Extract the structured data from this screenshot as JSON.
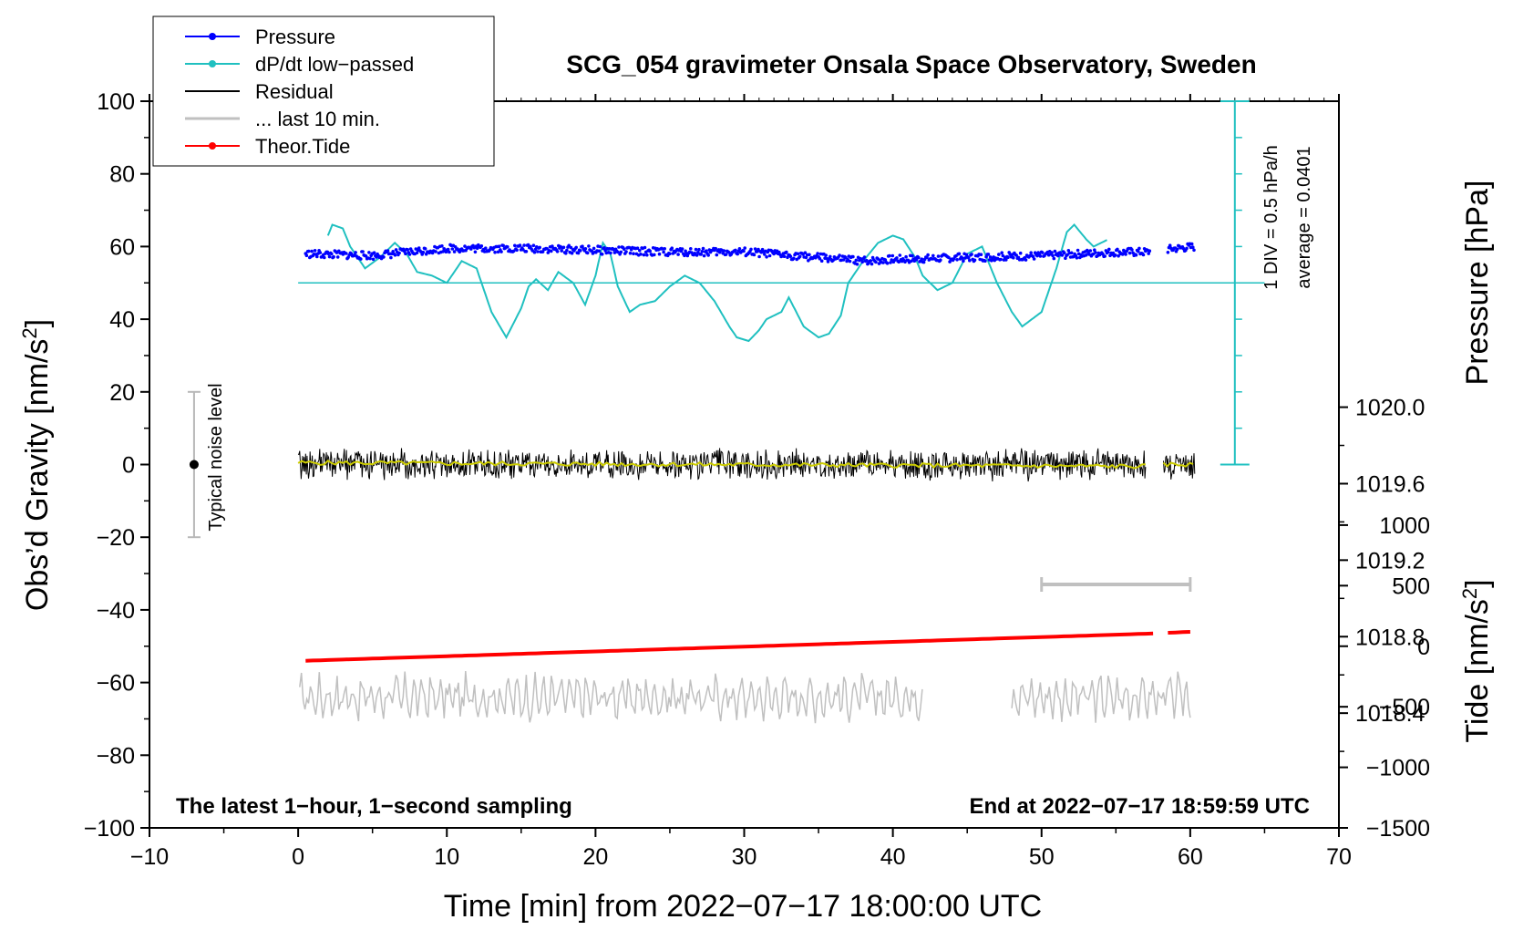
{
  "chart_data": {
    "type": "line",
    "title": "SCG_054 gravimeter Onsala Space Observatory, Sweden",
    "xlabel": "Time [min] from 2022−07−17 18:00:00 UTC",
    "ylabel_main": "Obs’d Gravity [nm/s",
    "ylabel_main_sup": "2",
    "ylabel_main_end": "]",
    "ylabel_pressure": "Pressure [hPa]",
    "ylabel_tide": "Tide [nm/s",
    "ylabel_tide_sup": "2",
    "ylabel_tide_end": "]",
    "xlim": [
      -10,
      70
    ],
    "ylim": [
      -100,
      100
    ],
    "x_ticks": [
      "−10",
      "0",
      "10",
      "20",
      "30",
      "40",
      "50",
      "60",
      "70"
    ],
    "x_tick_values": [
      -10,
      0,
      10,
      20,
      30,
      40,
      50,
      60,
      70
    ],
    "y_ticks": [
      "100",
      "80",
      "60",
      "40",
      "20",
      "0",
      "−20",
      "−40",
      "−60",
      "−80",
      "−100"
    ],
    "y_tick_values": [
      100,
      80,
      60,
      40,
      20,
      0,
      -20,
      -40,
      -60,
      -80,
      -100
    ],
    "pressure_ticks": [
      "1020.0",
      "1019.6",
      "1019.2",
      "1018.8",
      "1018.4"
    ],
    "pressure_tick_values": [
      1020.0,
      1019.6,
      1019.2,
      1018.8,
      1018.4
    ],
    "pressure_axis_range": [
      1017.8,
      1021.6
    ],
    "tide_ticks": [
      "1000",
      "500",
      "0",
      "−500",
      "−1000",
      "−1500"
    ],
    "tide_tick_values": [
      1000,
      500,
      0,
      -500,
      -1000,
      -1500
    ],
    "tide_axis_range": [
      -1500,
      4500
    ],
    "legend": [
      {
        "label": "Pressure",
        "color": "#0000ff",
        "marker": true
      },
      {
        "label": "dP/dt low−passed",
        "color": "#20c0c0",
        "marker": true
      },
      {
        "label": "Residual",
        "color": "#000000",
        "marker": false
      },
      {
        "label": "... last 10 min.",
        "color": "#c0c0c0",
        "marker": false
      },
      {
        "label": "Theor.Tide",
        "color": "#ff0000",
        "marker": true
      }
    ],
    "series": [
      {
        "name": "Pressure",
        "color": "#0000ff",
        "x": [
          0.5,
          5,
          10,
          15,
          20,
          25,
          30,
          35,
          38,
          40,
          45,
          50,
          55,
          57,
          59,
          60.3
        ],
        "values": [
          58,
          57.5,
          59.5,
          59.5,
          59,
          58.5,
          58.5,
          57,
          56,
          56.5,
          57,
          57.5,
          58.5,
          58.5,
          59.5,
          60
        ]
      },
      {
        "name": "dP/dt low-passed",
        "color": "#20c0c0",
        "x": [
          2,
          2.3,
          3,
          3.5,
          4.5,
          5.5,
          6.5,
          7.3,
          8,
          9,
          10,
          11,
          12,
          13,
          14,
          15,
          15.5,
          16,
          16.8,
          17.5,
          18.5,
          19.3,
          20,
          20.5,
          21,
          21.5,
          22.3,
          23,
          24,
          25,
          26,
          27,
          28,
          29,
          29.5,
          30.3,
          31,
          31.5,
          32.5,
          33,
          34,
          35,
          35.7,
          36.5,
          37,
          38,
          39,
          40,
          40.7,
          41.5,
          42,
          43,
          44,
          45,
          46,
          47,
          48,
          48.7,
          50,
          51,
          51.7,
          52.2,
          53,
          53.5,
          54.5
        ],
        "values": [
          63,
          66,
          65,
          60,
          54,
          57,
          61,
          58,
          53,
          52,
          50,
          56,
          54,
          42,
          35,
          43,
          49,
          51,
          48,
          53,
          50,
          44,
          52,
          61,
          58,
          49,
          42,
          44,
          45,
          49,
          52,
          50,
          45,
          38,
          35,
          34,
          37,
          40,
          42,
          46,
          38,
          35,
          36,
          41,
          50,
          56,
          61,
          63,
          62,
          57,
          52,
          48,
          50,
          58,
          60,
          50,
          42,
          38,
          42,
          54,
          64,
          66,
          62,
          60,
          62
        ]
      },
      {
        "name": "Residual",
        "color": "#000000",
        "x": [
          0,
          57,
          58.2,
          60.3
        ],
        "values": [
          0,
          0,
          0,
          0
        ],
        "amplitude": 4
      },
      {
        "name": "Residual smoothed",
        "color": "#cccc00",
        "x": [
          0,
          57,
          58.2,
          60.3
        ],
        "values": [
          0.5,
          -0.5,
          0,
          0
        ]
      },
      {
        "name": "... last 10 min.",
        "color": "#c0c0c0",
        "x": [
          0,
          42,
          48,
          60
        ],
        "values": [
          -64,
          -64,
          -64,
          -64
        ],
        "amplitude": 4
      },
      {
        "name": "Theor.Tide",
        "color": "#ff0000",
        "x": [
          0.5,
          57.5,
          58.5,
          60.3
        ],
        "values": [
          -54,
          -46.5,
          -46.3,
          -46
        ],
        "units": "nm/s^2 on main axis scale"
      }
    ],
    "pressure_scale_bar": {
      "x": 63,
      "y_from": 0,
      "y_to": 100,
      "baseline_y": 50,
      "labels": [
        "1 DIV = 0.5 hPa/h",
        "average = 0.0401"
      ]
    },
    "noise_bar": {
      "x": -7,
      "y_from": -20,
      "y_to": 20,
      "label": "Typical noise level"
    },
    "last10_bar": {
      "x_from": 50,
      "x_to": 60,
      "y": -33
    },
    "annotation_left": "The latest 1−hour, 1−second sampling",
    "annotation_right": "End at 2022−07−17 18:59:59 UTC"
  }
}
